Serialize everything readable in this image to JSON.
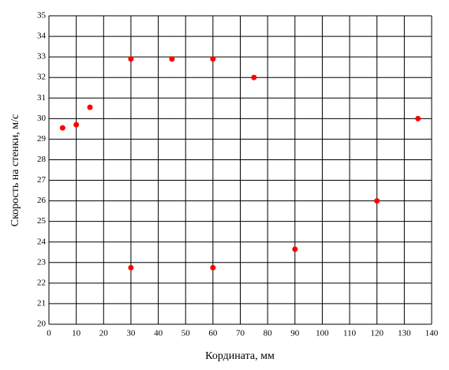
{
  "chart_data": {
    "type": "scatter",
    "x_label": "Кордината, мм",
    "y_label": "Скорость на стенки, м/с",
    "series": [
      {
        "color": "#ff0000",
        "x": [
          5,
          10,
          15,
          30,
          45,
          60,
          75,
          135,
          120,
          90,
          30,
          60
        ],
        "values": [
          29.55,
          29.7,
          30.55,
          32.9,
          32.9,
          32.9,
          32.0,
          30.0,
          26.0,
          23.65,
          22.75,
          22.75
        ]
      }
    ],
    "xlim": [
      0,
      140
    ],
    "xticks": [
      0,
      10,
      20,
      30,
      40,
      50,
      60,
      70,
      80,
      90,
      100,
      110,
      120,
      130,
      140
    ],
    "ylim": [
      20,
      35
    ],
    "yticks": [
      20,
      21,
      22,
      23,
      24,
      25,
      26,
      27,
      28,
      29,
      30,
      31,
      32,
      33,
      34,
      35
    ],
    "grid": true
  }
}
